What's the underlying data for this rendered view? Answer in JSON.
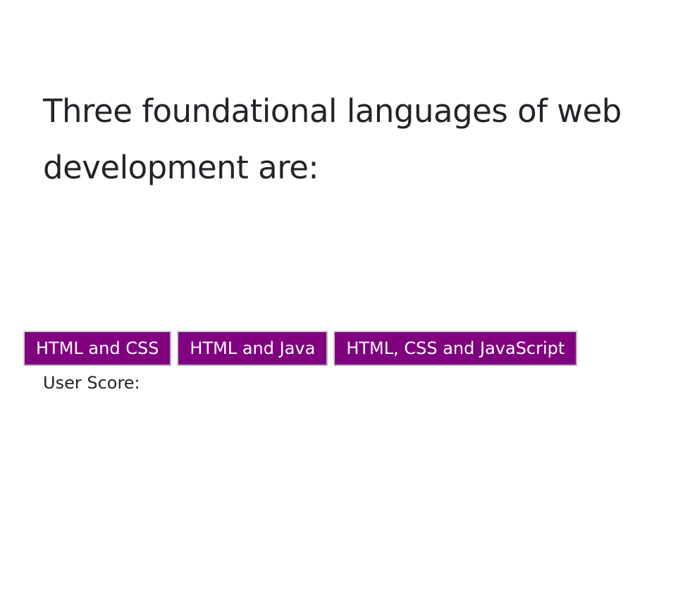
{
  "question": {
    "text": "Three foundational languages of web development are:"
  },
  "answers": [
    {
      "label": "HTML and CSS"
    },
    {
      "label": "HTML and Java"
    },
    {
      "label": "HTML, CSS and JavaScript"
    }
  ],
  "score": {
    "label": "User Score:",
    "value": ""
  },
  "colors": {
    "button_background": "#800080",
    "button_text": "#ffffff",
    "text": "#212529",
    "page_background": "#ffffff"
  }
}
